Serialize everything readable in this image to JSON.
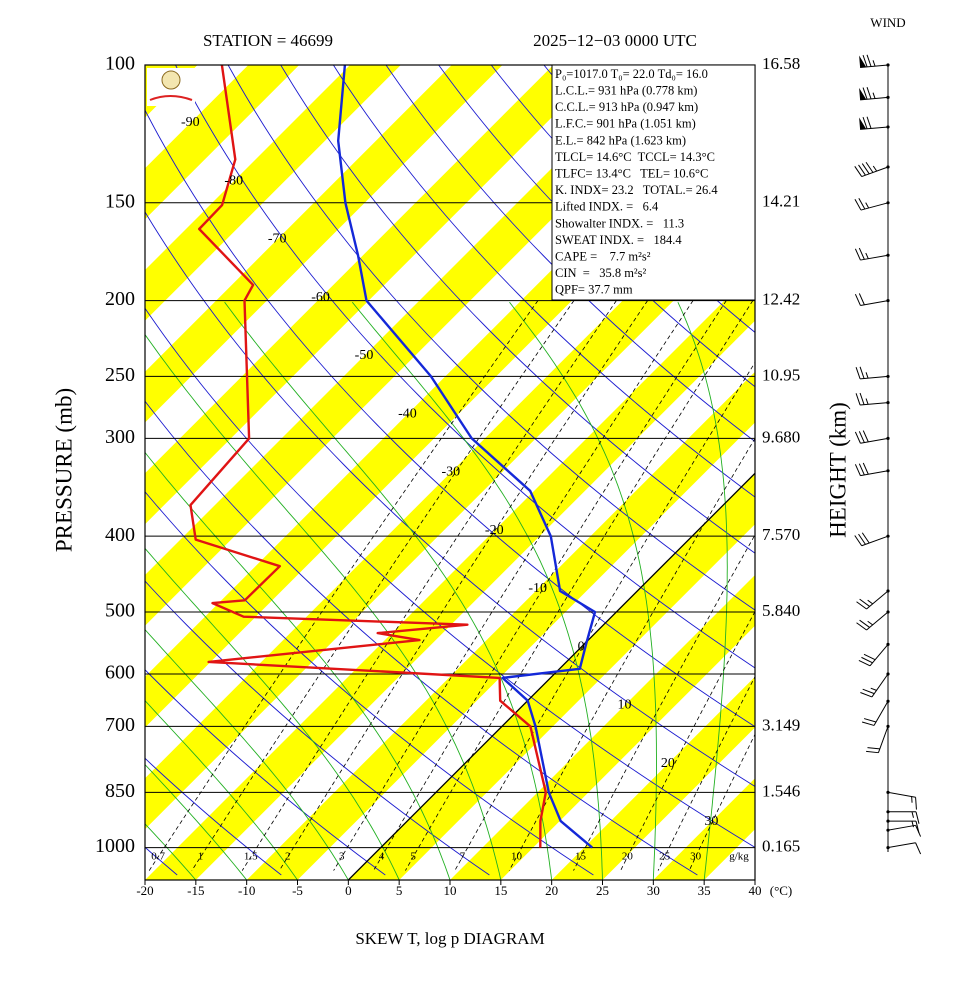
{
  "chart_data": {
    "type": "skewt",
    "station": "STATION = 46699",
    "datetime": "2025−12−03 0000 UTC",
    "title": "SKEW T, log p DIAGRAM",
    "ylabel": "PRESSURE (mb)",
    "y2label": "HEIGHT (km)",
    "x_unit": "(°C)",
    "wind_label": "WIND",
    "xlim": [
      -20,
      40
    ],
    "xticks": [
      -20,
      -15,
      -10,
      -5,
      0,
      5,
      10,
      15,
      20,
      25,
      30,
      35,
      40
    ],
    "ylim": [
      100,
      1100
    ],
    "yscale": "log",
    "yticks": [
      100,
      150,
      200,
      250,
      300,
      400,
      500,
      600,
      700,
      850,
      1000
    ],
    "height_labels": [
      "16.58",
      "14.21",
      "12.42",
      "10.95",
      "9.680",
      "7.570",
      "5.840",
      null,
      "3.149",
      "1.546",
      "0.165"
    ],
    "isotherm_labels": [
      -90,
      -80,
      -70,
      -60,
      -50,
      -40,
      -30,
      -20,
      -10,
      0,
      10,
      20,
      30
    ],
    "mixing_ratio_labels": [
      0.7,
      1,
      1.5,
      2,
      3,
      4,
      5,
      7,
      10,
      15,
      20,
      25,
      30
    ],
    "mixing_ratio_unit": "g/kg",
    "band_color": "#ffff00",
    "series": [
      {
        "color": "#1428d8",
        "pressure": [
          1000,
          925,
          850,
          700,
          649,
          607,
          591,
          550,
          500,
          470,
          400,
          350,
          300,
          250,
          200,
          175,
          150,
          125,
          100
        ],
        "values": [
          20.8,
          15.1,
          11.1,
          3.3,
          0.0,
          -4.7,
          2.0,
          0.2,
          -2.1,
          -7.6,
          -13.9,
          -20.4,
          -31.3,
          -41.4,
          -55.2,
          -60.5,
          -66.9,
          -73.7,
          -80.5
        ]
      },
      {
        "color": "#e01414",
        "pressure": [
          1000,
          925,
          850,
          700,
          649,
          607,
          579,
          543,
          532,
          519,
          507,
          487,
          483,
          437,
          404,
          365,
          300,
          200,
          191,
          162,
          151,
          132,
          100
        ],
        "values": [
          15.7,
          13.1,
          10.8,
          2.8,
          -2.7,
          -5.0,
          -35.2,
          -16.6,
          -21.4,
          -13.4,
          -36.2,
          -40.6,
          -37.7,
          -37.6,
          -48.5,
          -52.4,
          -53.2,
          -67.2,
          -67.9,
          -78.7,
          -78.8,
          -82.0,
          -92.6
        ]
      }
    ],
    "winds": {
      "pressure": [
        100,
        110,
        120,
        135,
        150,
        175,
        200,
        250,
        270,
        300,
        330,
        400,
        470,
        500,
        550,
        600,
        650,
        700,
        850,
        900,
        925,
        950,
        1000
      ],
      "direction": [
        265,
        265,
        265,
        250,
        255,
        260,
        260,
        265,
        265,
        260,
        260,
        250,
        230,
        230,
        220,
        215,
        210,
        200,
        100,
        90,
        90,
        80,
        80
      ],
      "speed": [
        75,
        75,
        70,
        45,
        25,
        25,
        20,
        25,
        25,
        30,
        30,
        30,
        25,
        25,
        30,
        25,
        20,
        20,
        15,
        15,
        15,
        10,
        10
      ]
    },
    "indices": [
      "P₀=1017.0 T₀= 22.0 Td₀= 16.0",
      "L.C.L.= 931 hPa (0.778 km)",
      "C.C.L.= 913 hPa (0.947 km)",
      "L.F.C.= 901 hPa (1.051 km)",
      "E.L.= 842 hPa (1.623 km)",
      "TLCL= 14.6°C  TCCL= 14.3°C",
      "TLFC= 13.4°C   TEL= 10.6°C",
      "K. INDX= 23.2   TOTAL.= 26.4",
      "Lifted INDX. =   6.4",
      "Showalter INDX. =   11.3",
      "SWEAT INDX. =   184.4",
      "CAPE =    7.7 m²s²",
      "CIN  =   35.8 m²s²",
      "QPF= 37.7 mm"
    ]
  }
}
